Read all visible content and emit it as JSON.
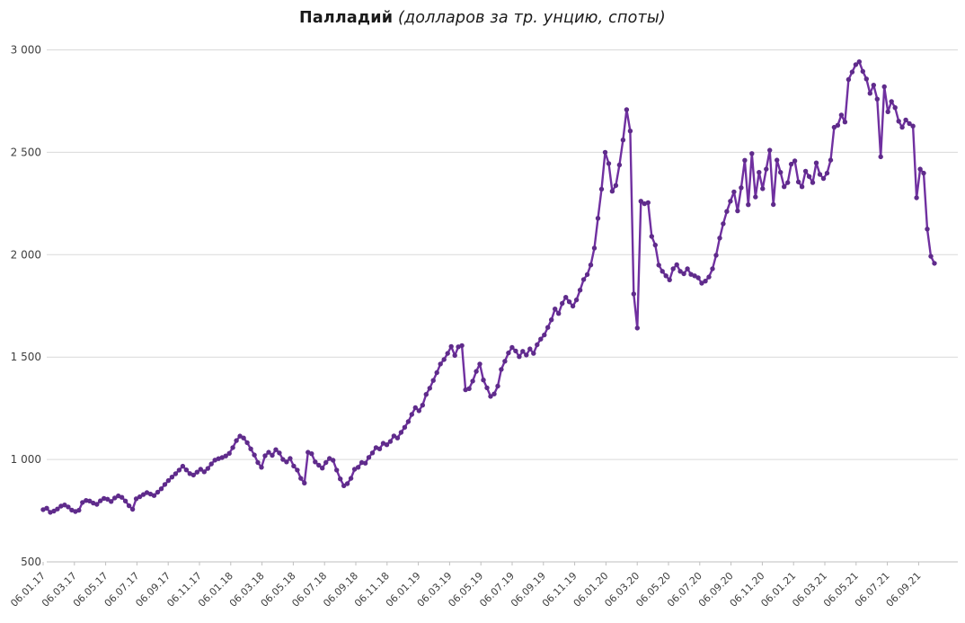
{
  "title": {
    "main": "Палладий",
    "subtitle": "(долларов за тр. унцию, споты)"
  },
  "chart_data": {
    "type": "line",
    "title": "Палладий (долларов за тр. унцию, споты)",
    "series_name": "Палладий, споты",
    "frequency_hint": "weekly points, 06.01.17 — late Sep 2021",
    "line_color": "#7030A0",
    "marker_color": "#5F2B8B",
    "grid_color": "#D9D9D9",
    "axis_color": "#BFBFBF",
    "label_color": "#3F3F3F",
    "legend": "none",
    "grid": "horizontal",
    "ylim": [
      500,
      3000
    ],
    "y_ticks": [
      500,
      1000,
      1500,
      2000,
      2500,
      3000
    ],
    "y_tick_labels": [
      "500",
      "1 000",
      "1 500",
      "2 000",
      "2 500",
      "3 000"
    ],
    "x_tick_labels": [
      "06.01.17",
      "06.03.17",
      "06.05.17",
      "06.07.17",
      "06.09.17",
      "06.11.17",
      "06.01.18",
      "06.03.18",
      "06.05.18",
      "06.07.18",
      "06.09.18",
      "06.11.18",
      "06.01.19",
      "06.03.19",
      "06.05.19",
      "06.07.19",
      "06.09.19",
      "06.11.19",
      "06.01.20",
      "06.03.20",
      "06.05.20",
      "06.07.20",
      "06.09.20",
      "06.11.20",
      "06.01.21",
      "06.03.21",
      "06.05.21",
      "06.07.21",
      "06.09.21"
    ],
    "values": [
      755,
      762,
      742,
      748,
      758,
      772,
      778,
      768,
      753,
      746,
      752,
      790,
      800,
      797,
      787,
      781,
      798,
      810,
      806,
      795,
      812,
      822,
      815,
      797,
      774,
      757,
      808,
      818,
      829,
      838,
      831,
      824,
      840,
      857,
      878,
      897,
      914,
      930,
      948,
      967,
      949,
      931,
      924,
      938,
      952,
      940,
      956,
      978,
      997,
      1004,
      1009,
      1017,
      1030,
      1058,
      1092,
      1114,
      1105,
      1082,
      1052,
      1022,
      985,
      962,
      1018,
      1035,
      1020,
      1048,
      1032,
      1000,
      988,
      1005,
      968,
      948,
      908,
      885,
      1035,
      1028,
      988,
      972,
      958,
      985,
      1005,
      996,
      948,
      905,
      872,
      882,
      908,
      952,
      962,
      985,
      982,
      1010,
      1032,
      1058,
      1052,
      1079,
      1072,
      1088,
      1115,
      1105,
      1132,
      1157,
      1185,
      1220,
      1253,
      1238,
      1265,
      1318,
      1348,
      1386,
      1424,
      1466,
      1488,
      1518,
      1552,
      1508,
      1550,
      1556,
      1340,
      1346,
      1383,
      1430,
      1466,
      1388,
      1350,
      1308,
      1320,
      1358,
      1440,
      1480,
      1520,
      1547,
      1530,
      1502,
      1528,
      1510,
      1540,
      1518,
      1560,
      1588,
      1608,
      1645,
      1682,
      1735,
      1713,
      1762,
      1792,
      1770,
      1749,
      1779,
      1827,
      1879,
      1903,
      1950,
      2032,
      2178,
      2320,
      2500,
      2445,
      2310,
      2338,
      2438,
      2560,
      2708,
      2604,
      1808,
      1642,
      2261,
      2249,
      2254,
      2089,
      2047,
      1949,
      1919,
      1897,
      1877,
      1931,
      1951,
      1919,
      1907,
      1931,
      1904,
      1897,
      1887,
      1861,
      1871,
      1891,
      1931,
      1997,
      2081,
      2151,
      2211,
      2261,
      2307,
      2214,
      2327,
      2461,
      2244,
      2494,
      2282,
      2402,
      2322,
      2418,
      2510,
      2245,
      2462,
      2402,
      2332,
      2352,
      2442,
      2458,
      2355,
      2332,
      2408,
      2382,
      2352,
      2448,
      2392,
      2372,
      2398,
      2462,
      2622,
      2632,
      2682,
      2648,
      2855,
      2892,
      2928,
      2942,
      2895,
      2858,
      2788,
      2828,
      2760,
      2478,
      2820,
      2698,
      2748,
      2718,
      2652,
      2622,
      2658,
      2640,
      2628,
      2278,
      2418,
      2398,
      2125,
      1992,
      1958
    ]
  }
}
